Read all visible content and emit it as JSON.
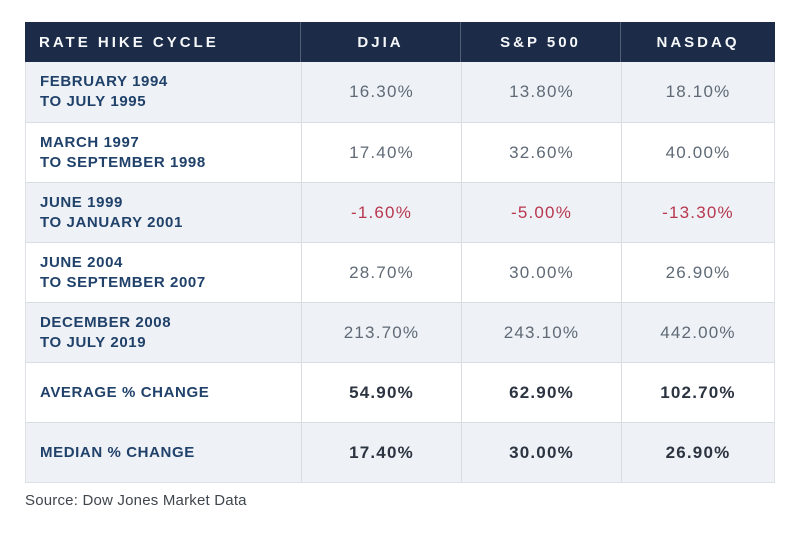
{
  "table": {
    "header": {
      "cycle": "RATE HIKE CYCLE",
      "djia": "DJIA",
      "sp500": "S&P 500",
      "nasdaq": "NASDAQ"
    },
    "rows": [
      {
        "period": [
          "FEBRUARY 1994",
          "TO JULY 1995"
        ],
        "djia": "16.30%",
        "sp500": "13.80%",
        "nasdaq": "18.10%"
      },
      {
        "period": [
          "MARCH 1997",
          "TO SEPTEMBER 1998"
        ],
        "djia": "17.40%",
        "sp500": "32.60%",
        "nasdaq": "40.00%"
      },
      {
        "period": [
          "JUNE 1999",
          "TO JANUARY 2001"
        ],
        "djia": "-1.60%",
        "sp500": "-5.00%",
        "nasdaq": "-13.30%"
      },
      {
        "period": [
          "JUNE 2004",
          "TO SEPTEMBER 2007"
        ],
        "djia": "28.70%",
        "sp500": "30.00%",
        "nasdaq": "26.90%"
      },
      {
        "period": [
          "DECEMBER 2008",
          "TO JULY 2019"
        ],
        "djia": "213.70%",
        "sp500": "243.10%",
        "nasdaq": "442.00%"
      }
    ],
    "summary_rows": [
      {
        "label": "AVERAGE % CHANGE",
        "djia": "54.90%",
        "sp500": "62.90%",
        "nasdaq": "102.70%"
      },
      {
        "label": "MEDIAN % CHANGE",
        "djia": "17.40%",
        "sp500": "30.00%",
        "nasdaq": "26.90%"
      }
    ]
  },
  "source": "Source: Dow Jones Market Data",
  "colors": {
    "header_bg": "#1b2b48",
    "header_text": "#f6f8fa",
    "row_bg": "#ffffff",
    "row_alt_bg": "#eef1f5",
    "border": "#d9dde2",
    "period_text": "#20416a",
    "value_text": "#5f6a76",
    "negative_value": "#b8374f",
    "summary_value_text": "#2b3440",
    "source_text": "#3f464d"
  },
  "chart_data": {
    "type": "table",
    "columns": [
      "RATE HIKE CYCLE",
      "DJIA",
      "S&P 500",
      "NASDAQ"
    ],
    "rows": [
      [
        "FEBRUARY 1994 TO JULY 1995",
        16.3,
        13.8,
        18.1
      ],
      [
        "MARCH 1997 TO SEPTEMBER 1998",
        17.4,
        32.6,
        40.0
      ],
      [
        "JUNE 1999 TO JANUARY 2001",
        -1.6,
        -5.0,
        -13.3
      ],
      [
        "JUNE 2004 TO SEPTEMBER 2007",
        28.7,
        30.0,
        26.9
      ],
      [
        "DECEMBER 2008 TO JULY 2019",
        213.7,
        243.1,
        442.0
      ],
      [
        "AVERAGE % CHANGE",
        54.9,
        62.9,
        102.7
      ],
      [
        "MEDIAN % CHANGE",
        17.4,
        30.0,
        26.9
      ]
    ],
    "units": "%",
    "source": "Source: Dow Jones Market Data"
  }
}
